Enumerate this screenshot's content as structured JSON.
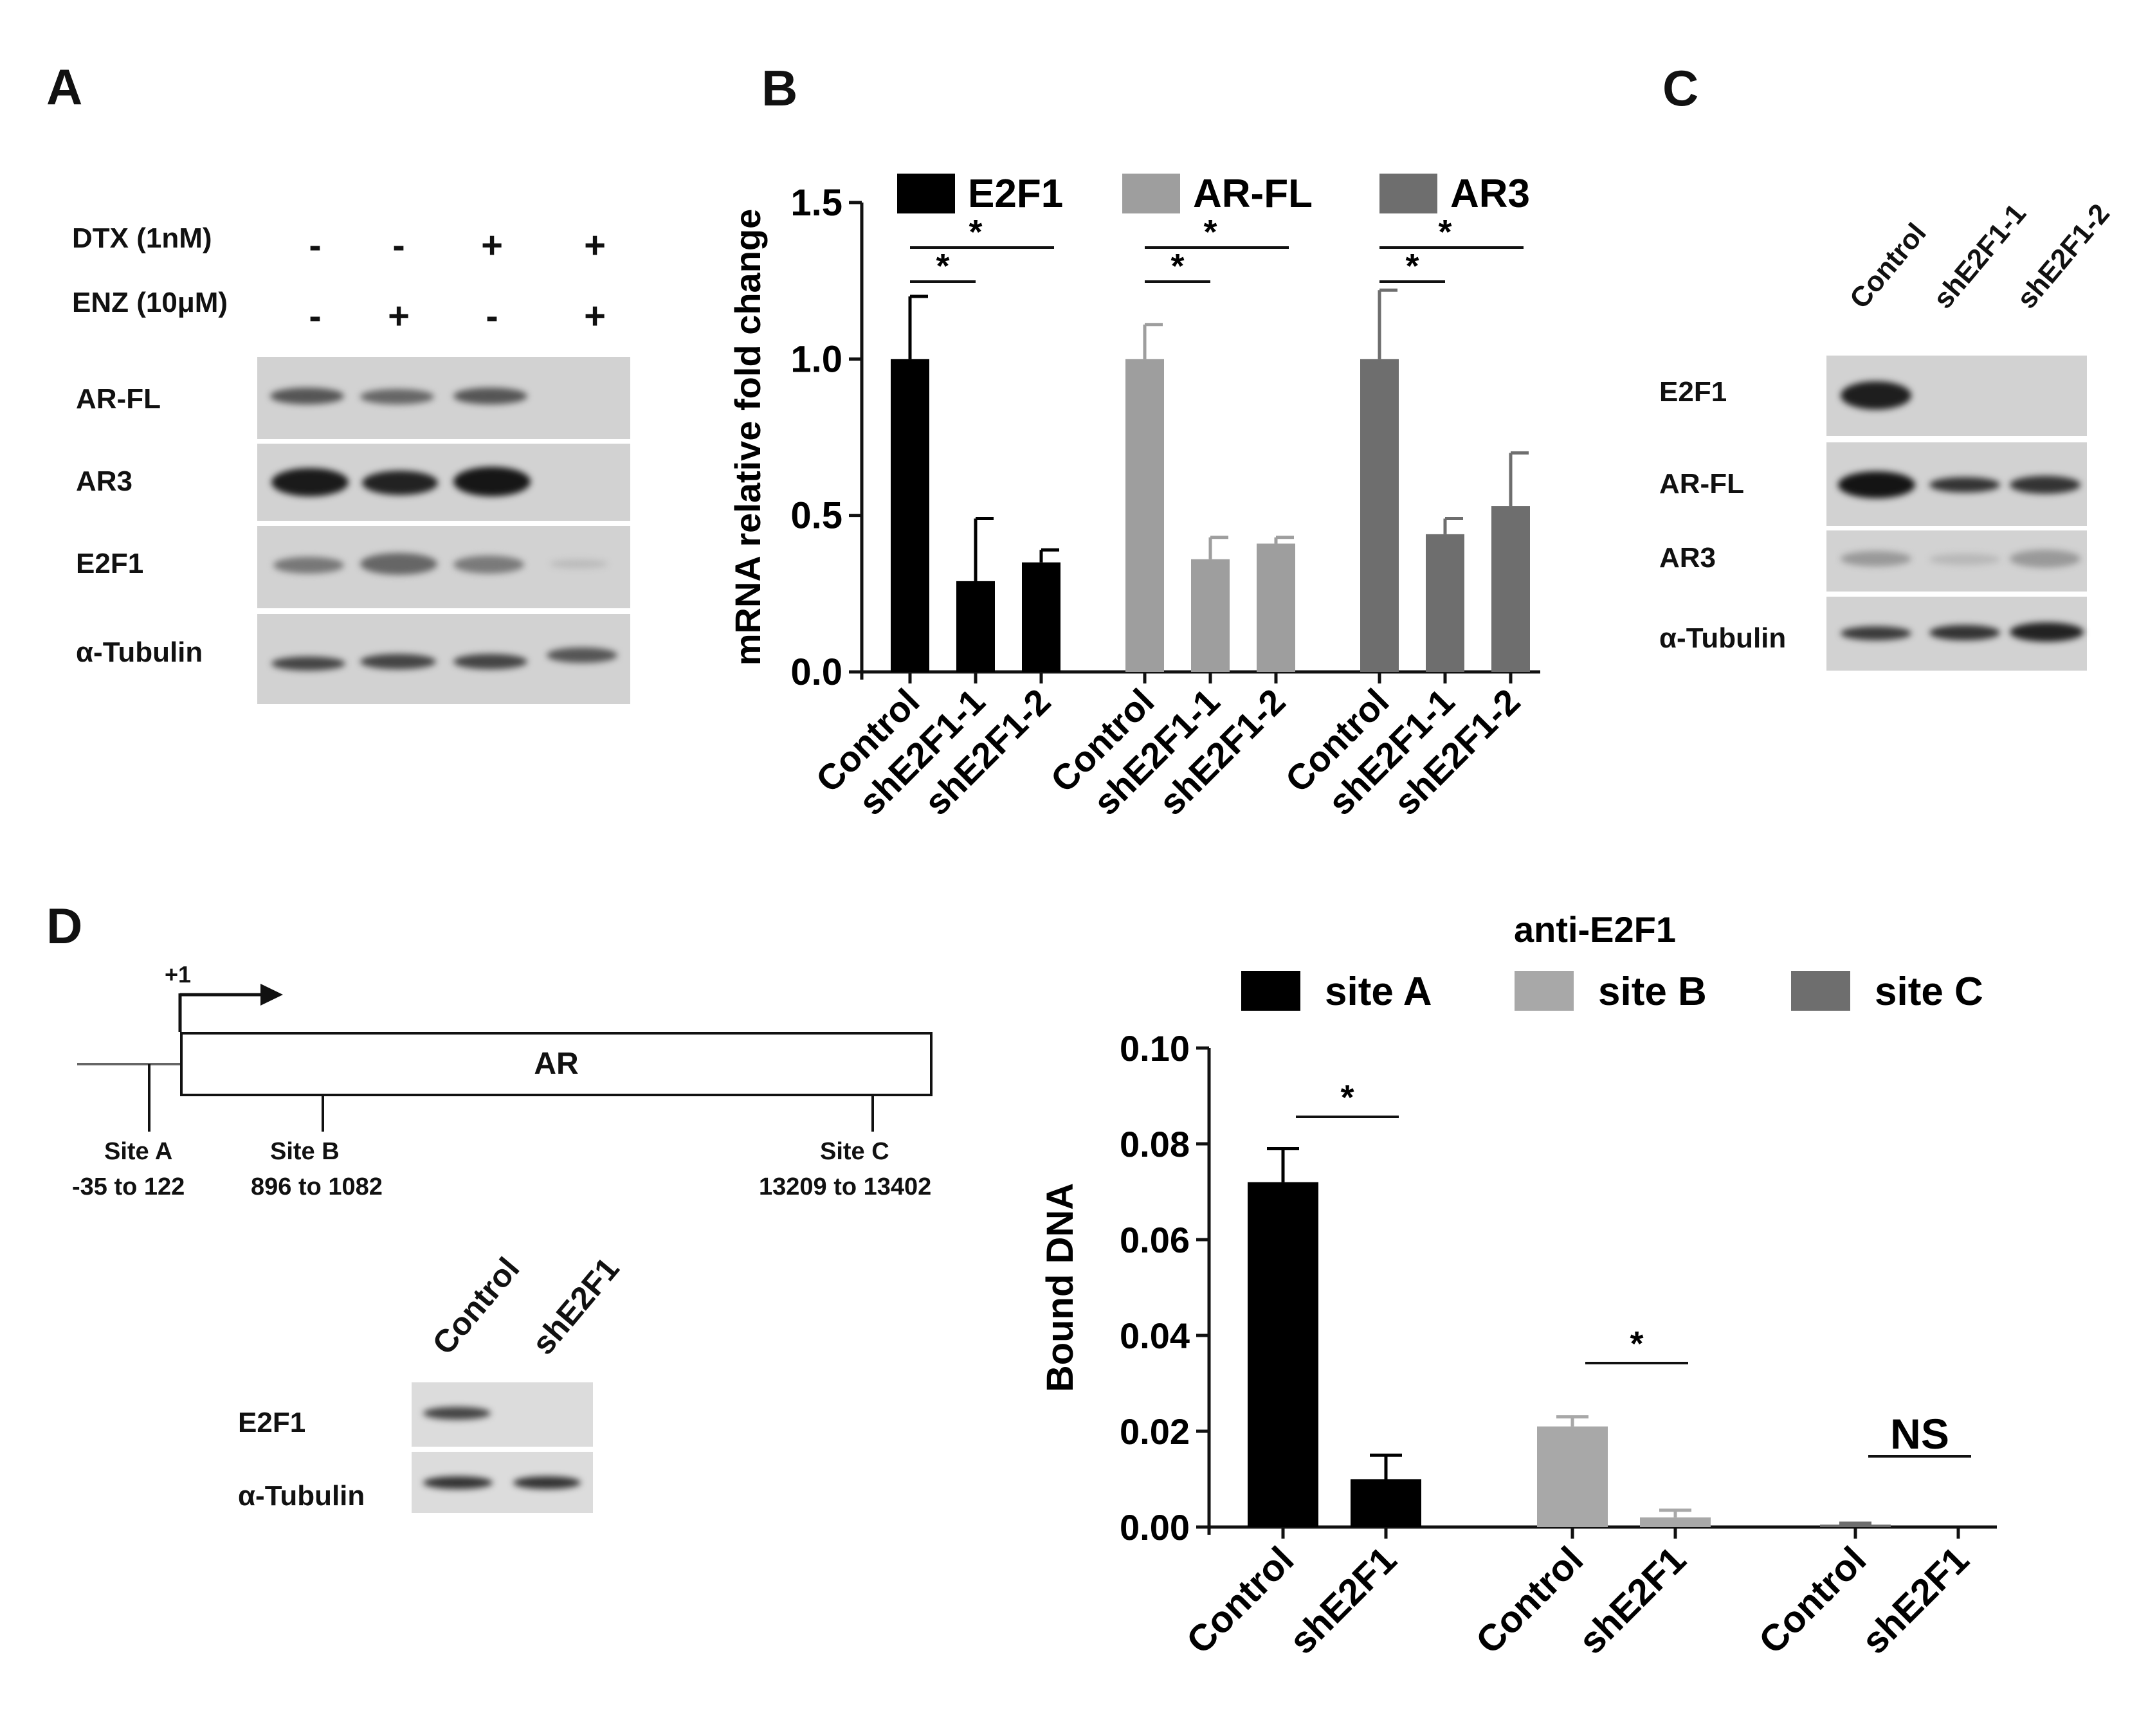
{
  "panels": {
    "A": {
      "letter": "A",
      "conditions": [
        {
          "label": "DTX (1nM)",
          "signs": [
            "-",
            "-",
            "+",
            "+"
          ]
        },
        {
          "label": "ENZ (10μM)",
          "signs": [
            "-",
            "+",
            "-",
            "+"
          ]
        }
      ],
      "rows": [
        "AR-FL",
        "AR3",
        "E2F1",
        "α-Tubulin"
      ]
    },
    "B": {
      "letter": "B"
    },
    "C": {
      "letter": "C",
      "lanes": [
        "Control",
        "shE2F1-1",
        "shE2F1-2"
      ],
      "rows": [
        "E2F1",
        "AR-FL",
        "AR3",
        "α-Tubulin"
      ]
    },
    "D": {
      "letter": "D",
      "gene_label": "AR",
      "tss_label": "+1",
      "sites": [
        {
          "name": "Site A",
          "range": "-35 to 122"
        },
        {
          "name": "Site B",
          "range": "896 to 1082"
        },
        {
          "name": "Site C",
          "range": "13209 to 13402"
        }
      ],
      "blot_lanes": [
        "Control",
        "shE2F1"
      ],
      "blot_rows": [
        "E2F1",
        "α-Tubulin"
      ]
    }
  },
  "chart_data": [
    {
      "panel": "B",
      "type": "bar",
      "ylabel": "mRNA relative fold change",
      "ylim": [
        0,
        1.5
      ],
      "yticks": [
        "0.0",
        "0.5",
        "1.0",
        "1.5"
      ],
      "colors": {
        "E2F1": "#000000",
        "AR-FL": "#9e9e9e",
        "AR3": "#6e6e6e"
      },
      "groups": [
        {
          "name": "E2F1",
          "categories": [
            "Control",
            "shE2F1-1",
            "shE2F1-2"
          ],
          "values": [
            1.0,
            0.29,
            0.35
          ],
          "errors": [
            0.2,
            0.2,
            0.04
          ]
        },
        {
          "name": "AR-FL",
          "categories": [
            "Control",
            "shE2F1-1",
            "shE2F1-2"
          ],
          "values": [
            1.0,
            0.36,
            0.41
          ],
          "errors": [
            0.11,
            0.07,
            0.02
          ]
        },
        {
          "name": "AR3",
          "categories": [
            "Control",
            "shE2F1-1",
            "shE2F1-2"
          ],
          "values": [
            1.0,
            0.44,
            0.53
          ],
          "errors": [
            0.22,
            0.05,
            0.17
          ]
        }
      ],
      "significance": "*"
    },
    {
      "panel": "D",
      "type": "bar",
      "title": "anti-E2F1",
      "ylabel": "Bound DNA",
      "ylim": [
        0,
        0.1
      ],
      "yticks": [
        "0.00",
        "0.02",
        "0.04",
        "0.06",
        "0.08",
        "0.10"
      ],
      "colors": {
        "site A": "#000000",
        "site B": "#a8a8a8",
        "site C": "#6e6e6e"
      },
      "groups": [
        {
          "name": "site A",
          "categories": [
            "Control",
            "shE2F1"
          ],
          "values": [
            0.072,
            0.01
          ],
          "errors": [
            0.007,
            0.005
          ],
          "sig": "*"
        },
        {
          "name": "site B",
          "categories": [
            "Control",
            "shE2F1"
          ],
          "values": [
            0.021,
            0.002
          ],
          "errors": [
            0.002,
            0.0015
          ],
          "sig": "*"
        },
        {
          "name": "site C",
          "categories": [
            "Control",
            "shE2F1"
          ],
          "values": [
            0.0005,
            0.0
          ],
          "errors": [
            0.0003,
            0.0
          ],
          "sig": "NS"
        }
      ]
    }
  ]
}
